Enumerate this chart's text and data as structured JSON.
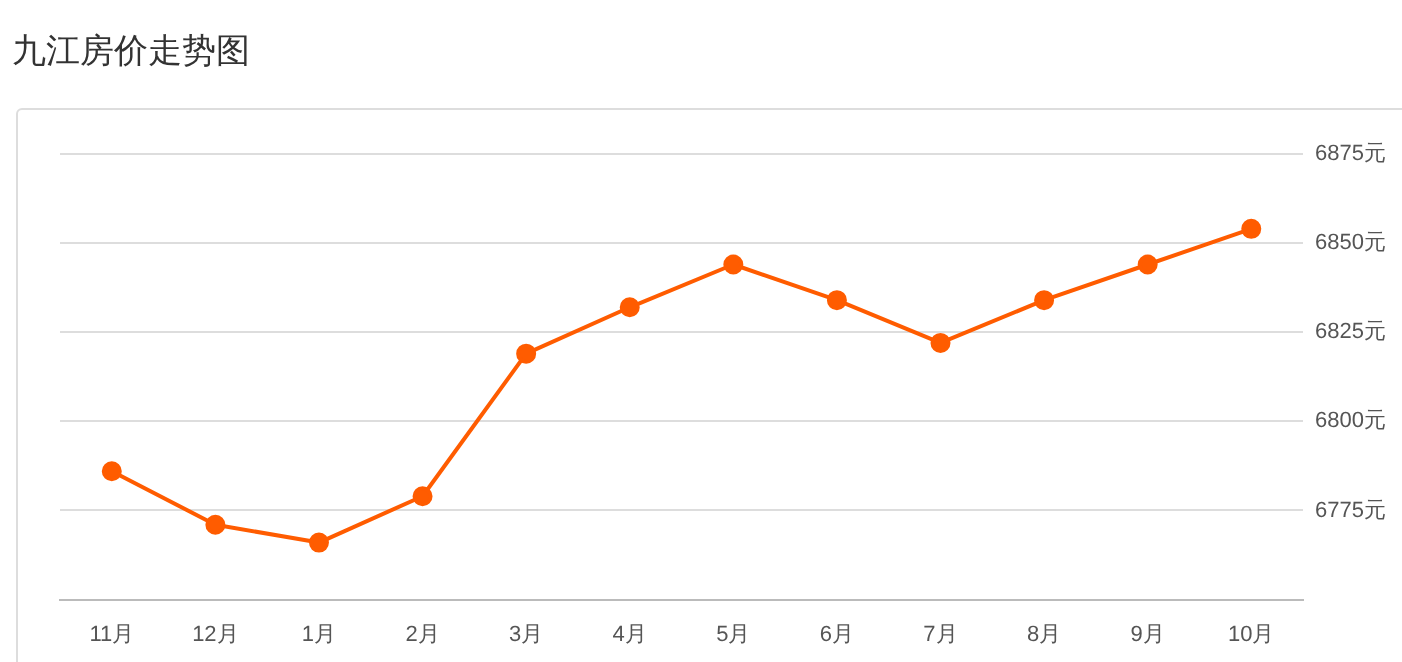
{
  "chart_data": {
    "type": "line",
    "title": "九江房价走势图",
    "categories": [
      "11月",
      "12月",
      "1月",
      "2月",
      "3月",
      "4月",
      "5月",
      "6月",
      "7月",
      "8月",
      "9月",
      "10月"
    ],
    "series": [
      {
        "color": "#ff5c00",
        "values": [
          6786,
          6771,
          6766,
          6779,
          6819,
          6832,
          6844,
          6834,
          6822,
          6834,
          6844,
          6854
        ]
      }
    ],
    "ylim": [
      6750,
      6875
    ],
    "yticks": [
      {
        "value": 6750,
        "label": null
      },
      {
        "value": 6775,
        "label": "6775元"
      },
      {
        "value": 6800,
        "label": "6800元"
      },
      {
        "value": 6825,
        "label": "6825元"
      },
      {
        "value": 6850,
        "label": "6850元"
      },
      {
        "value": 6875,
        "label": "6875元"
      }
    ],
    "grid": "y",
    "legend": false,
    "marker": "circle",
    "line_style": "solid"
  }
}
